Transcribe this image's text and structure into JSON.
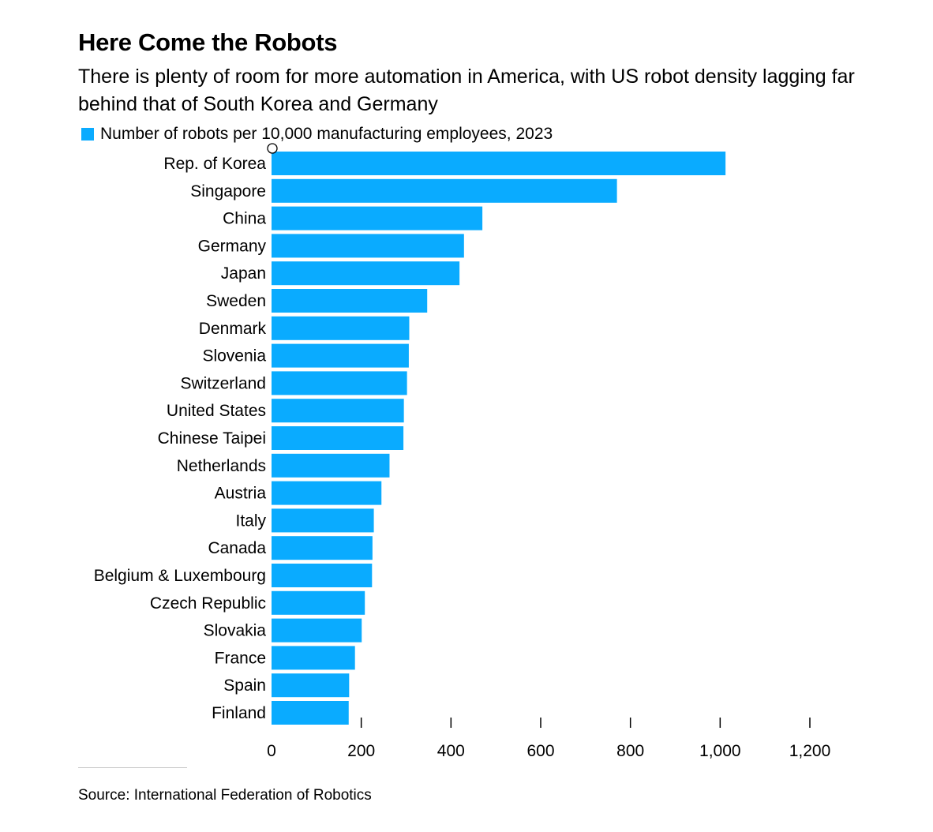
{
  "title": "Here Come the Robots",
  "subtitle": "There is plenty of room for more automation in America, with US robot density lagging far behind that of South Korea and Germany",
  "source": "Source: International Federation of Robotics",
  "colors": {
    "bar": "#0aabff",
    "text": "#000000",
    "tick": "#000000"
  },
  "chart_data": {
    "type": "bar",
    "orientation": "horizontal",
    "title": "Here Come the Robots",
    "xlabel": "",
    "ylabel": "",
    "xlim": [
      0,
      1200
    ],
    "xticks": [
      0,
      200,
      400,
      600,
      800,
      1000,
      1200
    ],
    "xtick_labels": [
      "0",
      "200",
      "400",
      "600",
      "800",
      "1,000",
      "1,200"
    ],
    "legend": "top-left",
    "series": [
      {
        "name": "Number of robots per 10,000 manufacturing employees, 2023",
        "values": [
          1012,
          770,
          470,
          429,
          419,
          347,
          307,
          306,
          302,
          295,
          294,
          263,
          245,
          228,
          225,
          224,
          208,
          201,
          186,
          173,
          172
        ]
      }
    ],
    "categories": [
      "Rep. of Korea",
      "Singapore",
      "China",
      "Germany",
      "Japan",
      "Sweden",
      "Denmark",
      "Slovenia",
      "Switzerland",
      "United States",
      "Chinese Taipei",
      "Netherlands",
      "Austria",
      "Italy",
      "Canada",
      "Belgium & Luxembourg",
      "Czech Republic",
      "Slovakia",
      "France",
      "Spain",
      "Finland"
    ]
  }
}
